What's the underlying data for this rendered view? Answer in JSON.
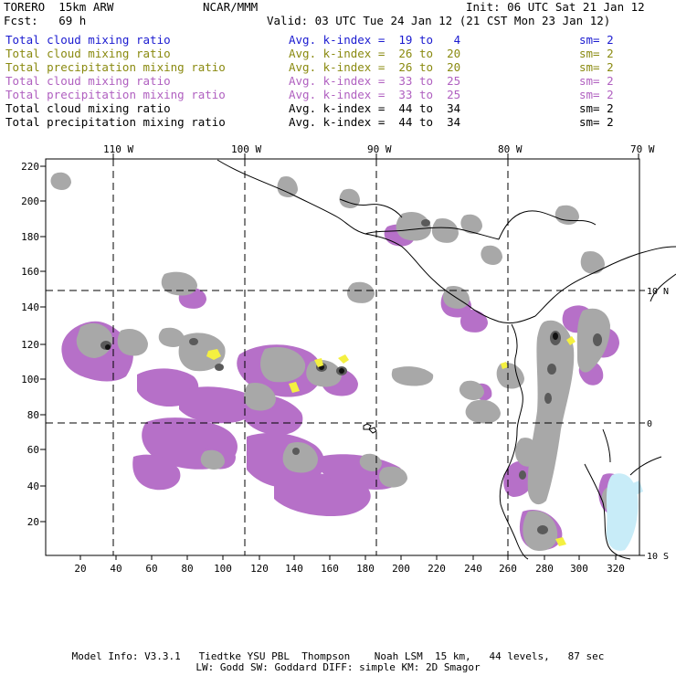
{
  "header": {
    "model": "TORERO  15km ARW",
    "center": "NCAR/MMM",
    "init": "Init: 06 UTC Sat 21 Jan 12",
    "fcst": "Fcst:   69 h",
    "valid": "Valid: 03 UTC Tue 24 Jan 12 (21 CST Mon 23 Jan 12)"
  },
  "legend_rows": [
    {
      "field": "Total cloud mixing ratio",
      "kindex": "Avg. k-index =  19 to   4",
      "sm": "sm= 2",
      "color": "#1a1ad0"
    },
    {
      "field": "Total cloud mixing ratio",
      "kindex": "Avg. k-index =  26 to  20",
      "sm": "sm= 2",
      "color": "#8a8a10"
    },
    {
      "field": "Total precipitation mixing ratio",
      "kindex": "Avg. k-index =  26 to  20",
      "sm": "sm= 2",
      "color": "#8a8a10"
    },
    {
      "field": "Total cloud mixing ratio",
      "kindex": "Avg. k-index =  33 to  25",
      "sm": "sm= 2",
      "color": "#b060c0"
    },
    {
      "field": "Total precipitation mixing ratio",
      "kindex": "Avg. k-index =  33 to  25",
      "sm": "sm= 2",
      "color": "#b060c0"
    },
    {
      "field": "Total cloud mixing ratio",
      "kindex": "Avg. k-index =  44 to  34",
      "sm": "sm= 2",
      "color": "#000000"
    },
    {
      "field": "Total precipitation mixing ratio",
      "kindex": "Avg. k-index =  44 to  34",
      "sm": "sm= 2",
      "color": "#000000"
    }
  ],
  "map": {
    "top_lon_labels": [
      "110 W",
      "100 W",
      "90 W",
      "80 W",
      "70 W"
    ],
    "right_lat_labels": [
      "10 N",
      "0",
      "10 S"
    ],
    "left_grid_labels": [
      "220",
      "200",
      "180",
      "160",
      "140",
      "120",
      "100",
      "80",
      "60",
      "40",
      "20"
    ],
    "bottom_grid_labels": [
      "20",
      "40",
      "60",
      "80",
      "100",
      "120",
      "140",
      "160",
      "180",
      "200",
      "220",
      "240",
      "260",
      "280",
      "300",
      "320"
    ],
    "colors": {
      "purple": "#b670c8",
      "gray": "#a0a0a0",
      "darkgray": "#5a5a5a",
      "black": "#111111",
      "yellow": "#f4f040",
      "lightblue": "#c8ecf8"
    }
  },
  "footer": {
    "line1": "Model Info: V3.3.1   Tiedtke YSU PBL  Thompson    Noah LSM  15 km,   44 levels,   87 sec",
    "line2": "LW: Godd SW: Goddard DIFF: simple KM: 2D Smagor"
  }
}
